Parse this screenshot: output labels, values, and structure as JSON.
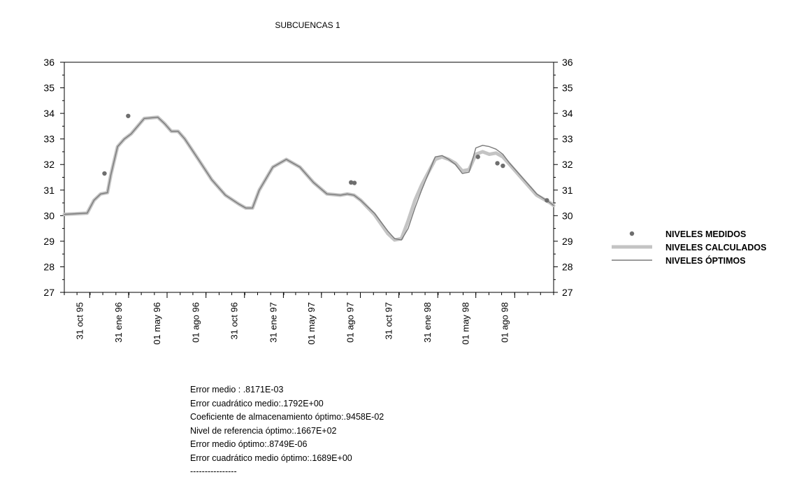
{
  "chart_data": {
    "type": "line",
    "title": "SUBCUENCAS 1",
    "xlabel": "",
    "ylabel": "",
    "ylim": [
      27,
      36
    ],
    "yticks": [
      "27",
      "28",
      "29",
      "30",
      "31",
      "32",
      "33",
      "34",
      "35",
      "36"
    ],
    "xlim": [
      "1995-09-01",
      "1998-11-01"
    ],
    "xticks": [
      {
        "label": "31 oct 95",
        "date": "1995-10-31"
      },
      {
        "label": "31 ene 96",
        "date": "1996-01-31"
      },
      {
        "label": "01 may 96",
        "date": "1996-05-01"
      },
      {
        "label": "01 ago 96",
        "date": "1996-08-01"
      },
      {
        "label": "31 oct 96",
        "date": "1996-10-31"
      },
      {
        "label": "31 ene 97",
        "date": "1997-01-31"
      },
      {
        "label": "01 may 97",
        "date": "1997-05-01"
      },
      {
        "label": "01 ago 97",
        "date": "1997-08-01"
      },
      {
        "label": "31 oct 97",
        "date": "1997-10-31"
      },
      {
        "label": "31 ene 98",
        "date": "1998-01-31"
      },
      {
        "label": "01 may 98",
        "date": "1998-05-01"
      },
      {
        "label": "01 ago 98",
        "date": "1998-08-01"
      }
    ],
    "legend_position": "right",
    "series": [
      {
        "name": "NIVELES MEDIDOS",
        "style": "points",
        "color": "#6e6e6e",
        "x": [
          "1995-12-05",
          "1996-01-30",
          "1997-07-10",
          "1997-07-18",
          "1998-05-06",
          "1998-06-21",
          "1998-07-04",
          "1998-10-16"
        ],
        "y": [
          31.65,
          33.9,
          31.3,
          31.28,
          32.3,
          32.05,
          31.95,
          30.6
        ]
      },
      {
        "name": "NIVELES CALCULADOS",
        "style": "thick-line",
        "color": "#c4c4c4",
        "x": [
          "1995-09-01",
          "1995-10-25",
          "1995-11-10",
          "1995-11-26",
          "1995-12-12",
          "1995-12-20",
          "1996-01-05",
          "1996-01-21",
          "1996-02-06",
          "1996-03-08",
          "1996-04-09",
          "1996-04-25",
          "1996-05-11",
          "1996-05-27",
          "1996-06-12",
          "1996-07-14",
          "1996-08-15",
          "1996-09-16",
          "1996-10-18",
          "1996-11-03",
          "1996-11-19",
          "1996-12-05",
          "1997-01-06",
          "1997-02-07",
          "1997-03-11",
          "1997-04-12",
          "1997-05-14",
          "1997-06-15",
          "1997-07-01",
          "1997-07-17",
          "1997-08-02",
          "1997-09-03",
          "1997-10-05",
          "1997-10-21",
          "1997-11-06",
          "1997-11-22",
          "1997-12-08",
          "1997-12-24",
          "1998-01-25",
          "1998-02-10",
          "1998-02-26",
          "1998-03-14",
          "1998-03-30",
          "1998-04-15",
          "1998-05-01",
          "1998-05-17",
          "1998-06-02",
          "1998-06-18",
          "1998-07-04",
          "1998-07-20",
          "1998-08-21",
          "1998-09-22",
          "1998-10-24",
          "1998-11-01"
        ],
        "y": [
          30.05,
          30.1,
          30.6,
          30.85,
          30.9,
          31.6,
          32.7,
          33.0,
          33.2,
          33.8,
          33.85,
          33.6,
          33.3,
          33.3,
          33.0,
          32.2,
          31.4,
          30.8,
          30.45,
          30.3,
          30.3,
          31.0,
          31.9,
          32.2,
          31.9,
          31.3,
          30.85,
          30.8,
          30.85,
          30.8,
          30.6,
          30.05,
          29.3,
          29.05,
          29.1,
          29.8,
          30.6,
          31.2,
          32.2,
          32.3,
          32.2,
          32.05,
          31.75,
          31.8,
          32.4,
          32.5,
          32.4,
          32.45,
          32.3,
          32.0,
          31.4,
          30.8,
          30.5,
          30.4
        ]
      },
      {
        "name": "NIVELES ÓPTIMOS",
        "style": "line",
        "color": "#7a7a7a",
        "x": [
          "1995-09-01",
          "1995-10-25",
          "1995-11-10",
          "1995-11-26",
          "1995-12-12",
          "1995-12-20",
          "1996-01-05",
          "1996-01-21",
          "1996-02-06",
          "1996-03-08",
          "1996-04-09",
          "1996-04-25",
          "1996-05-11",
          "1996-05-27",
          "1996-06-12",
          "1996-07-14",
          "1996-08-15",
          "1996-09-16",
          "1996-10-18",
          "1996-11-03",
          "1996-11-19",
          "1996-12-05",
          "1997-01-06",
          "1997-02-07",
          "1997-03-11",
          "1997-04-12",
          "1997-05-14",
          "1997-06-15",
          "1997-07-01",
          "1997-07-17",
          "1997-08-02",
          "1997-09-03",
          "1997-10-05",
          "1997-10-21",
          "1997-11-06",
          "1997-11-22",
          "1997-12-08",
          "1997-12-24",
          "1998-01-25",
          "1998-02-10",
          "1998-02-26",
          "1998-03-14",
          "1998-03-30",
          "1998-04-15",
          "1998-05-01",
          "1998-05-17",
          "1998-06-02",
          "1998-06-18",
          "1998-07-04",
          "1998-07-20",
          "1998-08-21",
          "1998-09-22",
          "1998-10-24",
          "1998-11-01"
        ],
        "y": [
          30.05,
          30.1,
          30.6,
          30.85,
          30.9,
          31.6,
          32.7,
          33.0,
          33.2,
          33.8,
          33.85,
          33.6,
          33.3,
          33.3,
          33.0,
          32.2,
          31.4,
          30.8,
          30.45,
          30.3,
          30.3,
          31.0,
          31.9,
          32.2,
          31.9,
          31.3,
          30.85,
          30.8,
          30.85,
          30.8,
          30.6,
          30.1,
          29.4,
          29.1,
          29.05,
          29.5,
          30.3,
          31.0,
          32.3,
          32.35,
          32.2,
          32.0,
          31.65,
          31.7,
          32.65,
          32.75,
          32.7,
          32.6,
          32.4,
          32.05,
          31.45,
          30.85,
          30.5,
          30.4
        ]
      }
    ]
  },
  "stats": [
    "Error medio : .8171E-03",
    "Error cuadrático medio:.1792E+00",
    "Coeficiente de almacenamiento óptimo:.9458E-02",
    "Nivel de referencia óptimo:.1667E+02",
    "Error medio óptimo:.8749E-06",
    "Error cuadrático medio óptimo:.1689E+00",
    "----------------"
  ]
}
